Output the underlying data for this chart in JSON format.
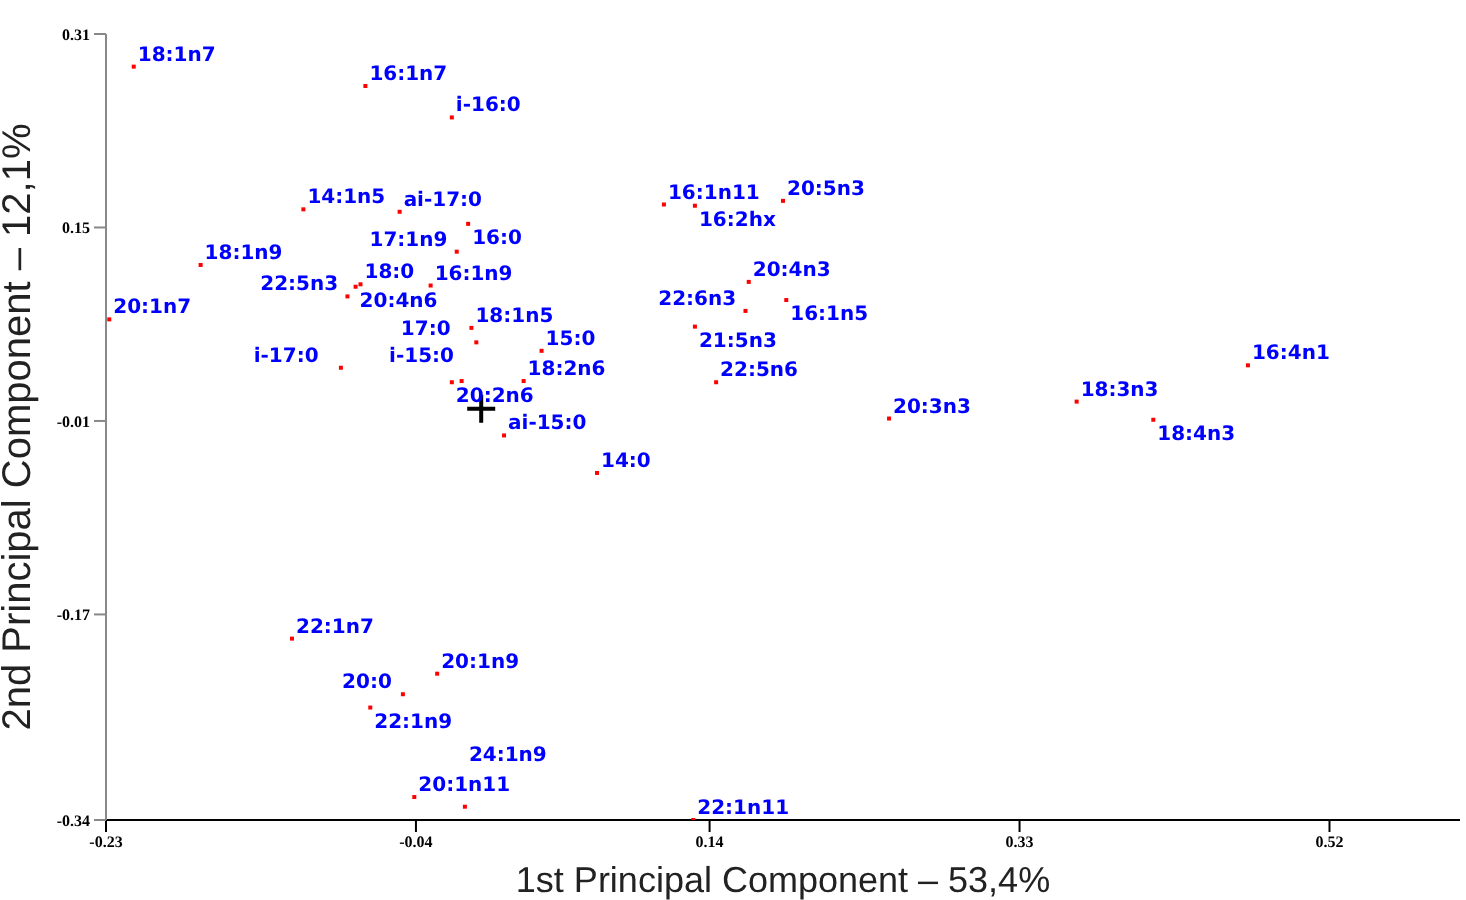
{
  "chart_data": {
    "type": "scatter",
    "xlabel": "1st Principal Component – 53,4%",
    "ylabel": "2nd Principal Component – 12,1%",
    "xlim": [
      -0.23,
      0.6
    ],
    "ylim": [
      -0.34,
      0.31
    ],
    "xticks": [
      -0.23,
      -0.04,
      0.14,
      0.33,
      0.52
    ],
    "yticks": [
      -0.34,
      -0.17,
      -0.01,
      0.15,
      0.31
    ],
    "grid": false,
    "legend": false,
    "series": [
      {
        "color": "#ff0000",
        "marker": "square",
        "x": [
          -0.213,
          -0.071,
          -0.018,
          -0.109,
          -0.05,
          -0.008,
          -0.015,
          -0.172,
          -0.082,
          -0.077,
          -0.074,
          -0.031,
          -0.228,
          -0.006,
          -0.003,
          0.037,
          -0.086,
          -0.018,
          -0.012,
          0.026,
          0.014,
          0.071,
          0.112,
          0.131,
          0.185,
          0.164,
          0.187,
          0.162,
          0.131,
          0.144,
          0.25,
          0.47,
          0.365,
          0.412,
          -0.116,
          -0.027,
          -0.048,
          -0.068,
          -0.041,
          -0.01,
          0.13
        ],
        "values": [
          0.283,
          0.267,
          0.241,
          0.165,
          0.163,
          0.153,
          0.13,
          0.119,
          0.093,
          0.101,
          0.103,
          0.102,
          0.074,
          0.067,
          0.055,
          0.048,
          0.034,
          0.022,
          0.023,
          0.023,
          -0.022,
          -0.053,
          0.169,
          0.168,
          0.172,
          0.105,
          0.09,
          0.081,
          0.068,
          0.022,
          -0.008,
          0.036,
          0.006,
          -0.009,
          -0.19,
          -0.219,
          -0.236,
          -0.247,
          -0.321,
          -0.329,
          -0.34
        ]
      },
      {
        "color": "#000000",
        "marker": "cross",
        "x": [
          0
        ],
        "values": [
          0
        ]
      }
    ],
    "annotations": [
      {
        "text": "18:1n7",
        "x": -0.213,
        "y": 0.283
      },
      {
        "text": "16:1n7",
        "x": -0.071,
        "y": 0.267
      },
      {
        "text": "i-16:0",
        "x": -0.018,
        "y": 0.241
      },
      {
        "text": "14:1n5",
        "x": -0.109,
        "y": 0.165
      },
      {
        "text": "ai-17:0",
        "x": -0.05,
        "y": 0.163
      },
      {
        "text": "16:0",
        "x": -0.008,
        "y": 0.153
      },
      {
        "text": "17:1n9",
        "x": -0.015,
        "y": 0.13
      },
      {
        "text": "18:1n9",
        "x": -0.172,
        "y": 0.119
      },
      {
        "text": "22:5n3",
        "x": -0.082,
        "y": 0.093
      },
      {
        "text": "20:4n6",
        "x": -0.077,
        "y": 0.101
      },
      {
        "text": "18:0",
        "x": -0.074,
        "y": 0.103
      },
      {
        "text": "16:1n9",
        "x": -0.031,
        "y": 0.102
      },
      {
        "text": "20:1n7",
        "x": -0.228,
        "y": 0.074
      },
      {
        "text": "18:1n5",
        "x": -0.006,
        "y": 0.067
      },
      {
        "text": "i-15:0",
        "x": -0.003,
        "y": 0.055
      },
      {
        "text": "15:0",
        "x": 0.037,
        "y": 0.048
      },
      {
        "text": "i-17:0",
        "x": -0.086,
        "y": 0.034
      },
      {
        "text": "20:2n6",
        "x": -0.018,
        "y": 0.022
      },
      {
        "text": "17:0",
        "x": -0.012,
        "y": 0.023
      },
      {
        "text": "18:2n6",
        "x": 0.026,
        "y": 0.023
      },
      {
        "text": "ai-15:0",
        "x": 0.014,
        "y": -0.022
      },
      {
        "text": "14:0",
        "x": 0.071,
        "y": -0.053
      },
      {
        "text": "16:1n11",
        "x": 0.112,
        "y": 0.169
      },
      {
        "text": "16:2hx",
        "x": 0.131,
        "y": 0.168
      },
      {
        "text": "20:5n3",
        "x": 0.185,
        "y": 0.172
      },
      {
        "text": "20:4n3",
        "x": 0.164,
        "y": 0.105
      },
      {
        "text": "16:1n5",
        "x": 0.187,
        "y": 0.09
      },
      {
        "text": "22:6n3",
        "x": 0.162,
        "y": 0.081
      },
      {
        "text": "21:5n3",
        "x": 0.131,
        "y": 0.068
      },
      {
        "text": "22:5n6",
        "x": 0.144,
        "y": 0.022
      },
      {
        "text": "20:3n3",
        "x": 0.25,
        "y": -0.008
      },
      {
        "text": "16:4n1",
        "x": 0.47,
        "y": 0.036
      },
      {
        "text": "18:3n3",
        "x": 0.365,
        "y": 0.006
      },
      {
        "text": "18:4n3",
        "x": 0.412,
        "y": -0.009
      },
      {
        "text": "22:1n7",
        "x": -0.116,
        "y": -0.19
      },
      {
        "text": "20:1n9",
        "x": -0.027,
        "y": -0.219
      },
      {
        "text": "20:0",
        "x": -0.048,
        "y": -0.236
      },
      {
        "text": "22:1n9",
        "x": -0.068,
        "y": -0.247
      },
      {
        "text": "20:1n11",
        "x": -0.041,
        "y": -0.321
      },
      {
        "text": "24:1n9",
        "x": -0.01,
        "y": -0.329
      },
      {
        "text": "22:1n11",
        "x": 0.13,
        "y": -0.34
      }
    ]
  }
}
